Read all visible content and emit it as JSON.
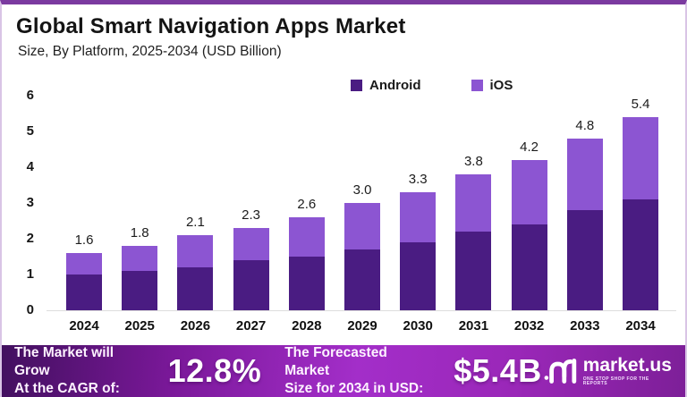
{
  "header": {
    "title": "Global Smart Navigation Apps Market",
    "subtitle": "Size, By Platform, 2025-2034 (USD Billion)"
  },
  "chart_data": {
    "type": "bar",
    "stacked": true,
    "title": "Global Smart Navigation Apps Market",
    "subtitle": "Size, By Platform, 2025-2034 (USD Billion)",
    "unit": "USD Billion",
    "categories": [
      "2024",
      "2025",
      "2026",
      "2027",
      "2028",
      "2029",
      "2030",
      "2031",
      "2032",
      "2033",
      "2034"
    ],
    "series": [
      {
        "name": "Android",
        "color": "#4a1c82",
        "values": [
          1.0,
          1.1,
          1.2,
          1.4,
          1.5,
          1.7,
          1.9,
          2.2,
          2.4,
          2.8,
          3.1
        ]
      },
      {
        "name": "iOS",
        "color": "#8c55d2",
        "values": [
          0.6,
          0.7,
          0.9,
          0.9,
          1.1,
          1.3,
          1.4,
          1.6,
          1.8,
          2.0,
          2.3
        ]
      }
    ],
    "total_labels": [
      "1.6",
      "1.8",
      "2.1",
      "2.3",
      "2.6",
      "3.0",
      "3.3",
      "3.8",
      "4.2",
      "4.8",
      "5.4"
    ],
    "ylim": [
      0,
      6
    ],
    "ytick_step": 1,
    "grid": false,
    "legend_position": "top"
  },
  "footer": {
    "cagr_label_line1": "The Market will Grow",
    "cagr_label_line2": "At the CAGR of:",
    "cagr_value": "12.8%",
    "forecast_label_line1": "The Forecasted Market",
    "forecast_label_line2": "Size for 2034 in USD:",
    "forecast_value": "$5.4B",
    "brand": {
      "name": "market.us",
      "tagline": "ONE STOP SHOP FOR THE REPORTS"
    }
  },
  "colors": {
    "android": "#4a1c82",
    "ios": "#8c55d2",
    "frame_border_top": "#7b3aa0",
    "footer_gradient_start": "#42105f",
    "footer_gradient_mid": "#a32ec9",
    "footer_gradient_end": "#7d1f98",
    "axis_line": "#dddddd",
    "text_dark": "#141414",
    "text_light": "#ffffff"
  }
}
